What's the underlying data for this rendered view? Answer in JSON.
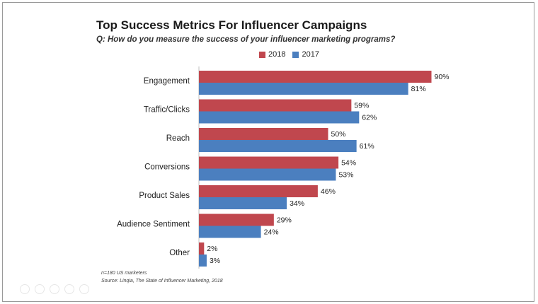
{
  "chart_data": {
    "type": "bar",
    "orientation": "horizontal",
    "title": "Top Success Metrics For Influencer Campaigns",
    "subtitle": "Q: How do you measure the success of your influencer marketing programs?",
    "categories": [
      "Engagement",
      "Traffic/Clicks",
      "Reach",
      "Conversions",
      "Product Sales",
      "Audience Sentiment",
      "Other"
    ],
    "series": [
      {
        "name": "2018",
        "color": "#c0474e",
        "values": [
          90,
          59,
          50,
          54,
          46,
          29,
          2
        ]
      },
      {
        "name": "2017",
        "color": "#4b7fbf",
        "values": [
          81,
          62,
          61,
          53,
          34,
          24,
          3
        ]
      }
    ],
    "value_suffix": "%",
    "xlim": [
      0,
      100
    ],
    "grid": false,
    "legend_position": "top"
  },
  "footnotes": {
    "sample": "n=180 US marketers",
    "source": "Source: Linqia, The State of Influencer Marketing, 2018"
  }
}
